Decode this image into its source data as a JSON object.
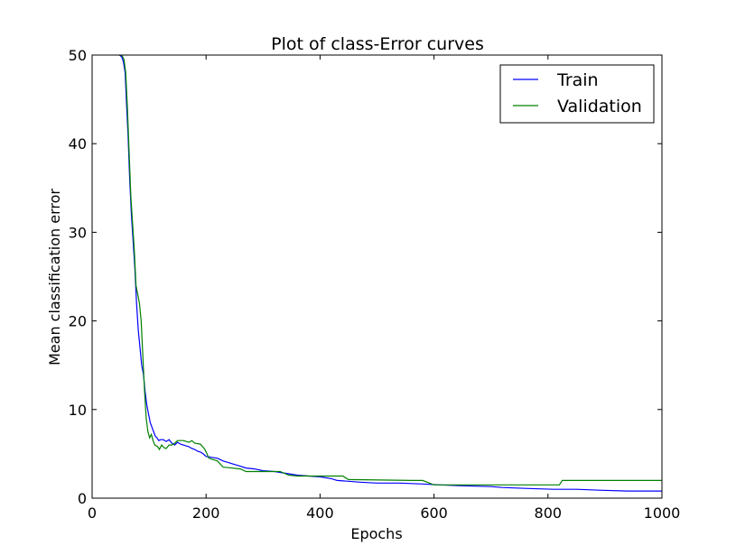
{
  "chart_data": {
    "type": "line",
    "title": "Plot of class-Error curves",
    "xlabel": "Epochs",
    "ylabel": "Mean classification error",
    "xlim": [
      0,
      1000
    ],
    "ylim": [
      0,
      50
    ],
    "x_ticks": [
      0,
      200,
      400,
      600,
      800,
      1000
    ],
    "y_ticks": [
      0,
      10,
      20,
      30,
      40,
      50
    ],
    "grid": false,
    "legend_position": "top-right",
    "series": [
      {
        "name": "Train",
        "color": "#0000ff",
        "points": [
          [
            48,
            50
          ],
          [
            52,
            49.8
          ],
          [
            55,
            49.2
          ],
          [
            58,
            48
          ],
          [
            60,
            45
          ],
          [
            63,
            41
          ],
          [
            66,
            36
          ],
          [
            69,
            32
          ],
          [
            72,
            29
          ],
          [
            75,
            26
          ],
          [
            78,
            22
          ],
          [
            81,
            19
          ],
          [
            84,
            17
          ],
          [
            87,
            15
          ],
          [
            90,
            14
          ],
          [
            93,
            12
          ],
          [
            96,
            10.5
          ],
          [
            99,
            9.5
          ],
          [
            102,
            8.5
          ],
          [
            105,
            8
          ],
          [
            108,
            7.5
          ],
          [
            111,
            7
          ],
          [
            114,
            6.8
          ],
          [
            117,
            6.5
          ],
          [
            120,
            6.6
          ],
          [
            125,
            6.6
          ],
          [
            130,
            6.4
          ],
          [
            135,
            6.6
          ],
          [
            140,
            6.2
          ],
          [
            145,
            6
          ],
          [
            150,
            6.3
          ],
          [
            155,
            6.1
          ],
          [
            160,
            6
          ],
          [
            165,
            5.9
          ],
          [
            170,
            5.8
          ],
          [
            175,
            5.6
          ],
          [
            180,
            5.5
          ],
          [
            185,
            5.3
          ],
          [
            190,
            5.2
          ],
          [
            195,
            5
          ],
          [
            200,
            4.7
          ],
          [
            210,
            4.6
          ],
          [
            220,
            4.5
          ],
          [
            230,
            4.2
          ],
          [
            240,
            4
          ],
          [
            250,
            3.8
          ],
          [
            260,
            3.6
          ],
          [
            270,
            3.4
          ],
          [
            285,
            3.3
          ],
          [
            300,
            3.1
          ],
          [
            320,
            3
          ],
          [
            340,
            2.8
          ],
          [
            360,
            2.6
          ],
          [
            380,
            2.5
          ],
          [
            400,
            2.4
          ],
          [
            420,
            2.2
          ],
          [
            430,
            2
          ],
          [
            450,
            1.9
          ],
          [
            470,
            1.8
          ],
          [
            500,
            1.7
          ],
          [
            540,
            1.7
          ],
          [
            580,
            1.6
          ],
          [
            610,
            1.5
          ],
          [
            650,
            1.4
          ],
          [
            700,
            1.3
          ],
          [
            720,
            1.2
          ],
          [
            760,
            1.1
          ],
          [
            810,
            1
          ],
          [
            850,
            1
          ],
          [
            890,
            0.9
          ],
          [
            940,
            0.8
          ],
          [
            1000,
            0.8
          ]
        ]
      },
      {
        "name": "Validation",
        "color": "#008000",
        "points": [
          [
            46,
            50
          ],
          [
            52,
            50
          ],
          [
            56,
            49.5
          ],
          [
            59,
            48
          ],
          [
            62,
            44
          ],
          [
            65,
            39
          ],
          [
            68,
            34
          ],
          [
            71,
            31
          ],
          [
            74,
            28
          ],
          [
            77,
            24
          ],
          [
            80,
            23
          ],
          [
            83,
            22
          ],
          [
            86,
            20
          ],
          [
            89,
            16
          ],
          [
            92,
            12
          ],
          [
            95,
            9
          ],
          [
            98,
            7.5
          ],
          [
            101,
            6.8
          ],
          [
            104,
            7.2
          ],
          [
            107,
            6.5
          ],
          [
            110,
            6
          ],
          [
            115,
            5.8
          ],
          [
            118,
            5.5
          ],
          [
            122,
            6
          ],
          [
            126,
            5.7
          ],
          [
            130,
            5.6
          ],
          [
            135,
            6
          ],
          [
            140,
            6
          ],
          [
            145,
            6.2
          ],
          [
            150,
            6.5
          ],
          [
            160,
            6.5
          ],
          [
            170,
            6.3
          ],
          [
            175,
            6.5
          ],
          [
            180,
            6.2
          ],
          [
            190,
            6.1
          ],
          [
            198,
            5.5
          ],
          [
            205,
            4.5
          ],
          [
            220,
            4.2
          ],
          [
            230,
            3.5
          ],
          [
            260,
            3.3
          ],
          [
            270,
            3
          ],
          [
            330,
            3
          ],
          [
            345,
            2.6
          ],
          [
            360,
            2.5
          ],
          [
            440,
            2.5
          ],
          [
            450,
            2.1
          ],
          [
            560,
            2
          ],
          [
            580,
            2
          ],
          [
            600,
            1.5
          ],
          [
            700,
            1.5
          ],
          [
            820,
            1.5
          ],
          [
            825,
            2
          ],
          [
            900,
            2
          ],
          [
            1000,
            2
          ]
        ]
      }
    ]
  }
}
